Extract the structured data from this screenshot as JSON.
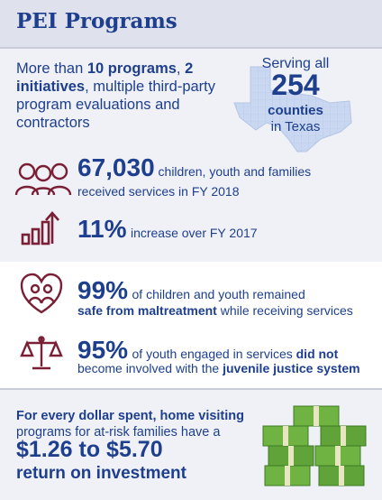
{
  "title": "PEI Programs",
  "programs": {
    "more_than": "More than ",
    "programs_count": "10 programs",
    "comma": ",",
    "initiatives": "2 initiatives",
    "rest_line": ", multiple third-party program evaluations and contractors"
  },
  "texas": {
    "serving": "Serving all",
    "count": "254",
    "counties": "counties",
    "in_texas": "in Texas"
  },
  "served": {
    "number": "67,030",
    "text_a": " children, youth and families",
    "text_b": "received services in FY 2018"
  },
  "increase": {
    "number": "11%",
    "text": "increase over FY 2017"
  },
  "safe": {
    "number": "99%",
    "text_a": "of children and youth remained",
    "bold_b": "safe from maltreatment",
    "text_b": " while receiving services"
  },
  "justice": {
    "number": "95%",
    "text_a": "of youth engaged in services ",
    "bold_a": "did not",
    "text_b": "become involved with the ",
    "bold_b": "juvenile justice system"
  },
  "roi": {
    "line1": "For every dollar spent, home visiting",
    "line2": "programs for at-risk families have a",
    "range": "$1.26 to $5.70",
    "label": "return on investment"
  },
  "colors": {
    "navy": "#1d3f8e",
    "maroon": "#7a1f35",
    "money_green": "#5fa339",
    "band": "#dfe1ec"
  }
}
